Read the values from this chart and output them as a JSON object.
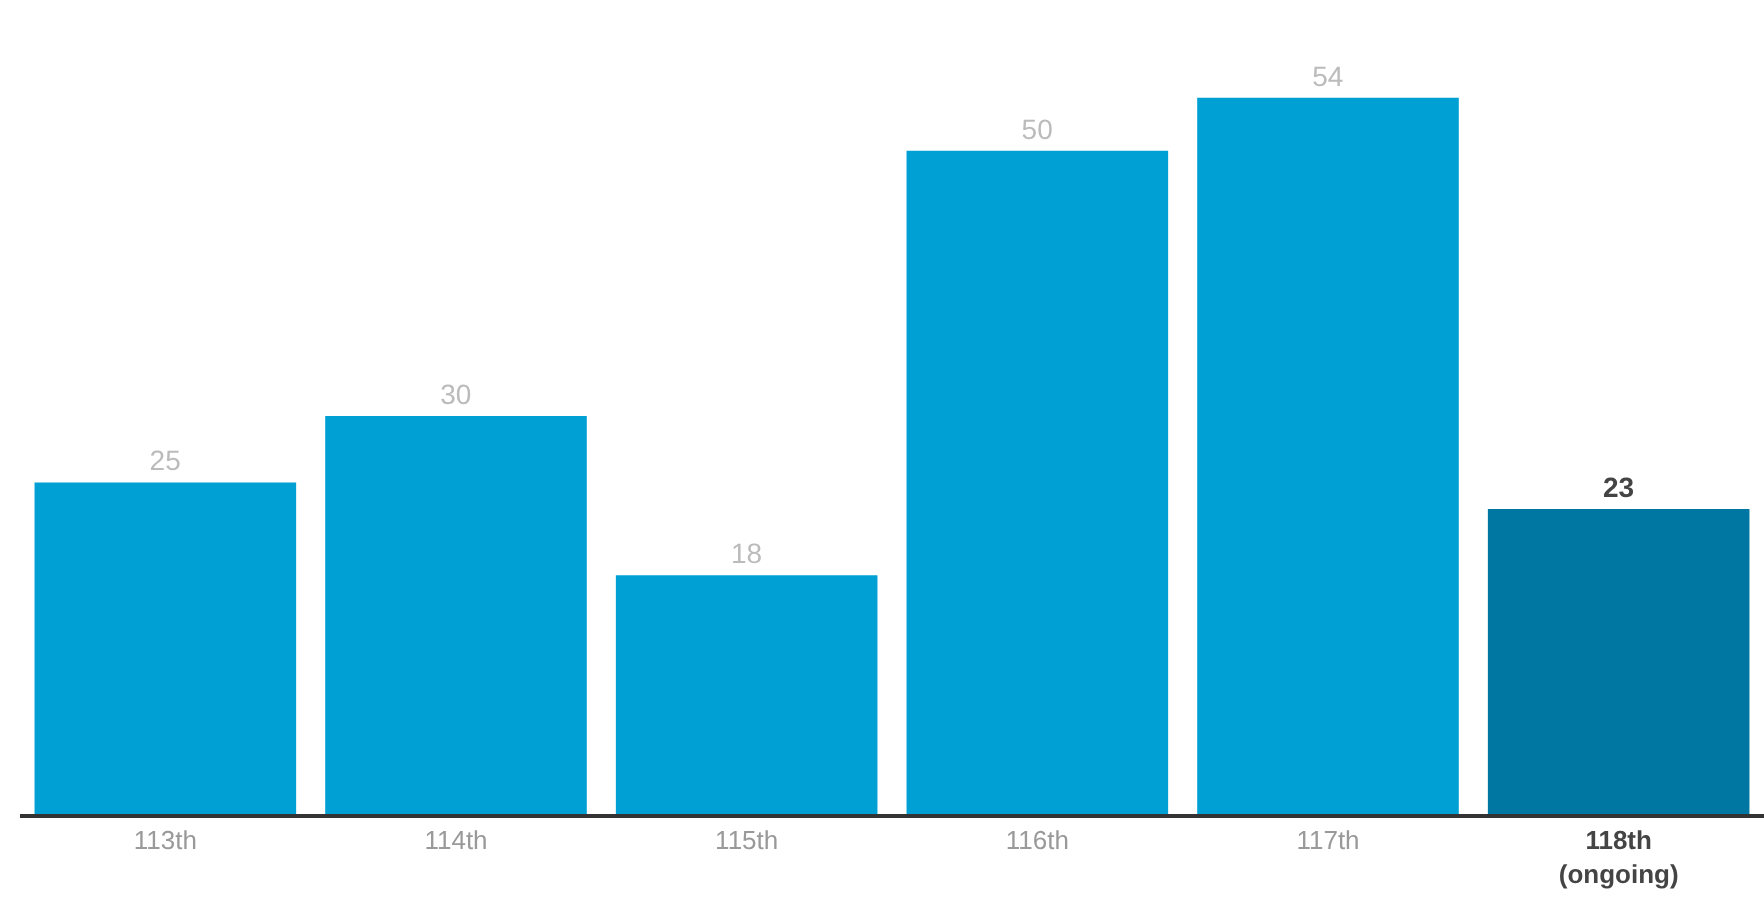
{
  "chart_data": {
    "type": "bar",
    "categories": [
      "113th",
      "114th",
      "115th",
      "116th",
      "117th",
      "118th\n(ongoing)"
    ],
    "values": [
      25,
      30,
      18,
      50,
      54,
      23
    ],
    "colors": [
      "#00a0d4",
      "#00a0d4",
      "#00a0d4",
      "#00a0d4",
      "#00a0d4",
      "#0076a2"
    ],
    "data_labels": true
  }
}
